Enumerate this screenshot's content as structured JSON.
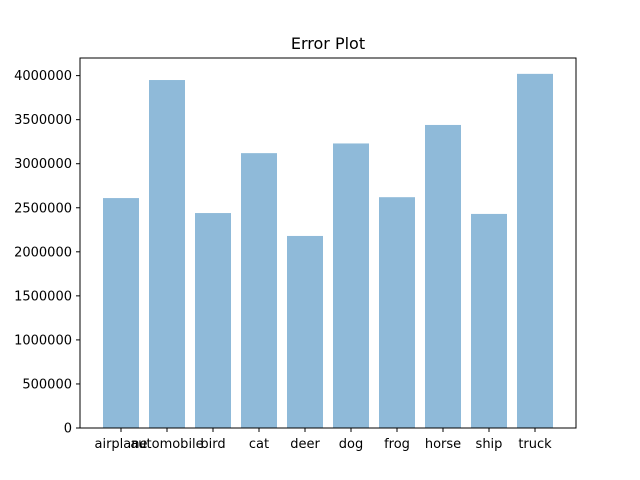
{
  "chart_data": {
    "type": "bar",
    "title": "Error Plot",
    "xlabel": "",
    "ylabel": "",
    "categories": [
      "airplane",
      "automobile",
      "bird",
      "cat",
      "deer",
      "dog",
      "frog",
      "horse",
      "ship",
      "truck"
    ],
    "values": [
      2610000,
      3950000,
      2440000,
      3120000,
      2180000,
      3230000,
      2620000,
      3440000,
      2430000,
      4020000
    ],
    "ylim": [
      0,
      4200000
    ],
    "yticks": [
      0,
      500000,
      1000000,
      1500000,
      2000000,
      2500000,
      3000000,
      3500000,
      4000000
    ],
    "ytick_labels": [
      "0",
      "500000",
      "1000000",
      "1500000",
      "2000000",
      "2500000",
      "3000000",
      "3500000",
      "4000000"
    ],
    "grid": false,
    "bar_color": "#8fbad9"
  }
}
